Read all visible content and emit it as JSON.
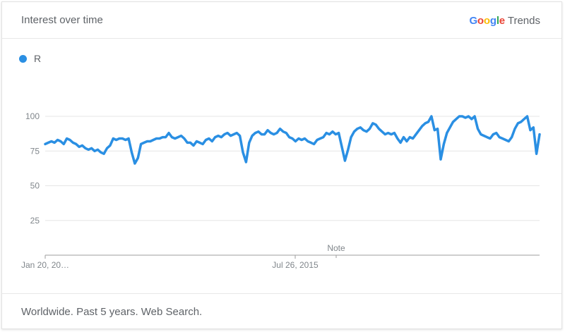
{
  "header": {
    "title": "Interest over time",
    "brand": {
      "google": "Google",
      "trends": "Trends"
    }
  },
  "footer": {
    "text": "Worldwide. Past 5 years. Web Search."
  },
  "colors": {
    "series": "#2a8fe3",
    "google_letters": [
      "#4285F4",
      "#EA4335",
      "#FBBC05",
      "#4285F4",
      "#34A853",
      "#EA4335"
    ]
  },
  "chart_data": {
    "type": "line",
    "title": "Interest over time",
    "series": [
      {
        "name": "R",
        "values": [
          80,
          81,
          82,
          81,
          83,
          82,
          80,
          84,
          83,
          81,
          80,
          78,
          79,
          77,
          76,
          77,
          75,
          76,
          74,
          73,
          77,
          79,
          84,
          83,
          84,
          84,
          83,
          84,
          74,
          66,
          70,
          80,
          81,
          82,
          82,
          83,
          84,
          84,
          85,
          85,
          88,
          85,
          84,
          85,
          86,
          84,
          81,
          81,
          79,
          82,
          81,
          80,
          83,
          84,
          82,
          85,
          86,
          85,
          87,
          88,
          86,
          87,
          88,
          86,
          74,
          67,
          81,
          86,
          88,
          89,
          87,
          87,
          90,
          88,
          87,
          88,
          91,
          89,
          88,
          85,
          84,
          82,
          84,
          83,
          84,
          82,
          81,
          80,
          83,
          84,
          85,
          88,
          87,
          89,
          87,
          88,
          78,
          68,
          76,
          85,
          89,
          91,
          92,
          90,
          89,
          91,
          95,
          94,
          91,
          89,
          87,
          88,
          87,
          88,
          84,
          81,
          85,
          82,
          85,
          84,
          87,
          90,
          93,
          95,
          96,
          100,
          90,
          91,
          69,
          80,
          88,
          92,
          96,
          98,
          100,
          100,
          99,
          100,
          98,
          100,
          91,
          87,
          86,
          85,
          84,
          87,
          88,
          85,
          84,
          83,
          82,
          85,
          91,
          95,
          96,
          98,
          100,
          90,
          92,
          73,
          87
        ]
      }
    ],
    "y_ticks": [
      25,
      50,
      75,
      100
    ],
    "ylim": [
      0,
      100
    ],
    "x_tick_labels": [
      "Jan 20, 20…",
      "Jul 26, 2015"
    ],
    "annotation": "Note",
    "grid": true,
    "legend_position": "top-left"
  }
}
